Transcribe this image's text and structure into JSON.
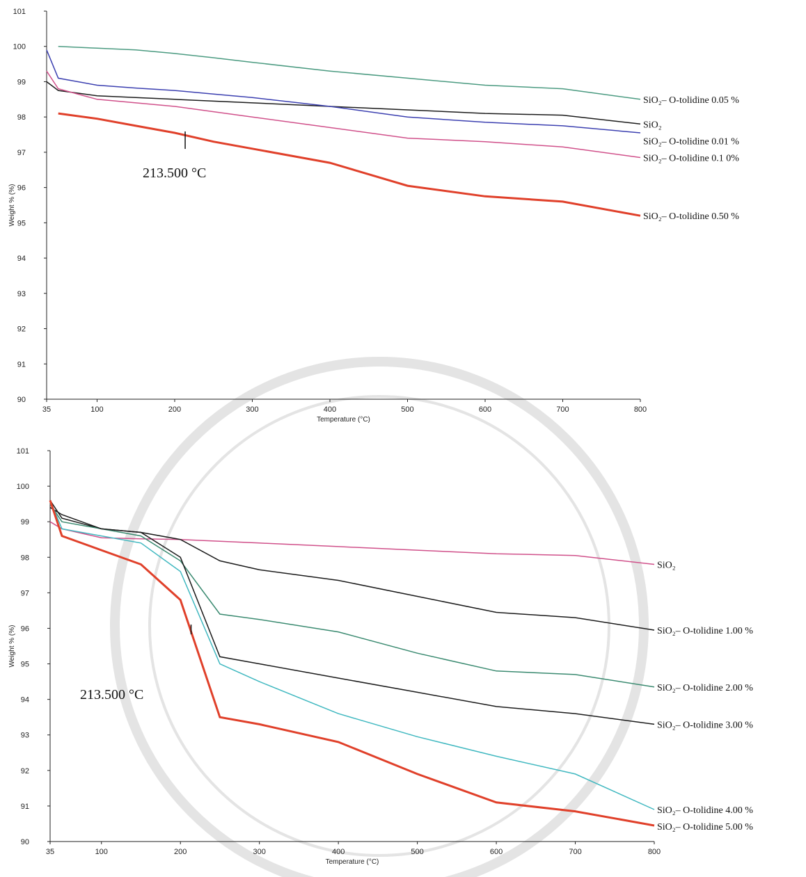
{
  "chart_data": [
    {
      "type": "line",
      "xlabel": "Temperature (°C)",
      "ylabel": "Weight % (%)",
      "x": [
        35,
        50,
        100,
        150,
        200,
        250,
        300,
        400,
        500,
        600,
        700,
        800
      ],
      "xlim": [
        35,
        800
      ],
      "xticks": [
        35,
        100,
        200,
        300,
        400,
        500,
        600,
        700,
        800
      ],
      "ylim": [
        90,
        101
      ],
      "yticks": [
        90,
        91,
        92,
        93,
        94,
        95,
        96,
        97,
        98,
        99,
        100,
        101
      ],
      "series": [
        {
          "name": "SiO₂– O-tolidine 0.05 %",
          "color": "#4a9a80",
          "linewidth": 1.5,
          "values": [
            null,
            100.0,
            99.95,
            99.9,
            99.8,
            99.68,
            99.55,
            99.3,
            99.1,
            98.9,
            98.8,
            98.5
          ]
        },
        {
          "name": "SiO₂",
          "color": "#1a1a1a",
          "linewidth": 1.5,
          "values": [
            99.0,
            98.75,
            98.6,
            98.55,
            98.5,
            98.45,
            98.4,
            98.3,
            98.2,
            98.1,
            98.05,
            97.8
          ]
        },
        {
          "name": "SiO₂– O-tolidine 0.01 %",
          "color": "#3b3fb0",
          "linewidth": 1.5,
          "values": [
            99.9,
            99.1,
            98.9,
            98.82,
            98.75,
            98.65,
            98.55,
            98.3,
            98.0,
            97.85,
            97.75,
            97.55
          ]
        },
        {
          "name": "SiO₂– O-tolidine 0.1 0%",
          "color": "#d0508a",
          "linewidth": 1.5,
          "values": [
            99.3,
            98.8,
            98.5,
            98.4,
            98.3,
            98.15,
            98.0,
            97.7,
            97.4,
            97.3,
            97.15,
            96.85
          ]
        },
        {
          "name": "SiO₂– O-tolidine 0.50 %",
          "color": "#e0402a",
          "linewidth": 3,
          "values": [
            null,
            98.1,
            97.95,
            97.75,
            97.55,
            97.3,
            97.1,
            96.7,
            96.05,
            95.75,
            95.6,
            95.2
          ]
        }
      ],
      "annotation": {
        "text": "213.500 °C",
        "x": 213.5
      }
    },
    {
      "type": "line",
      "xlabel": "Temperature (°C)",
      "ylabel": "Weight % (%)",
      "x": [
        35,
        50,
        100,
        150,
        200,
        250,
        300,
        400,
        500,
        600,
        700,
        800
      ],
      "xlim": [
        35,
        800
      ],
      "xticks": [
        35,
        100,
        200,
        300,
        400,
        500,
        600,
        700,
        800
      ],
      "ylim": [
        90,
        101
      ],
      "yticks": [
        90,
        91,
        92,
        93,
        94,
        95,
        96,
        97,
        98,
        99,
        100,
        101
      ],
      "series": [
        {
          "name": "SiO₂",
          "color": "#d0508a",
          "linewidth": 1.5,
          "values": [
            99.0,
            98.8,
            98.55,
            98.52,
            98.5,
            98.45,
            98.4,
            98.3,
            98.2,
            98.1,
            98.05,
            97.8
          ]
        },
        {
          "name": "SiO₂– O-tolidine 1.00 %",
          "color": "#1a1a1a",
          "linewidth": 1.5,
          "values": [
            99.6,
            99.1,
            98.8,
            98.7,
            98.5,
            97.9,
            97.65,
            97.35,
            96.9,
            96.45,
            96.3,
            95.95
          ]
        },
        {
          "name": "SiO₂– O-tolidine 2.00 %",
          "color": "#3a8a70",
          "linewidth": 1.5,
          "values": [
            99.5,
            99.0,
            98.8,
            98.6,
            97.9,
            96.4,
            96.25,
            95.9,
            95.3,
            94.8,
            94.7,
            94.35
          ]
        },
        {
          "name": "SiO₂– O-tolidine 3.00 %",
          "color": "#1a1a1a",
          "linewidth": 1.5,
          "values": [
            99.4,
            99.2,
            98.8,
            98.7,
            98.0,
            95.2,
            95.0,
            94.6,
            94.2,
            93.8,
            93.6,
            93.3
          ]
        },
        {
          "name": "SiO₂– O-tolidine 4.00 %",
          "color": "#40b8c0",
          "linewidth": 1.5,
          "values": [
            99.6,
            98.8,
            98.6,
            98.4,
            97.6,
            95.0,
            94.5,
            93.6,
            92.95,
            92.4,
            91.9,
            90.9
          ]
        },
        {
          "name": "SiO₂– O-tolidine 5.00 %",
          "color": "#e0402a",
          "linewidth": 3,
          "values": [
            99.6,
            98.6,
            98.2,
            97.8,
            96.8,
            93.5,
            93.3,
            92.8,
            91.9,
            91.1,
            90.85,
            90.45
          ]
        }
      ],
      "annotation": {
        "text": "213.500 °C",
        "x": 213.5
      }
    }
  ]
}
